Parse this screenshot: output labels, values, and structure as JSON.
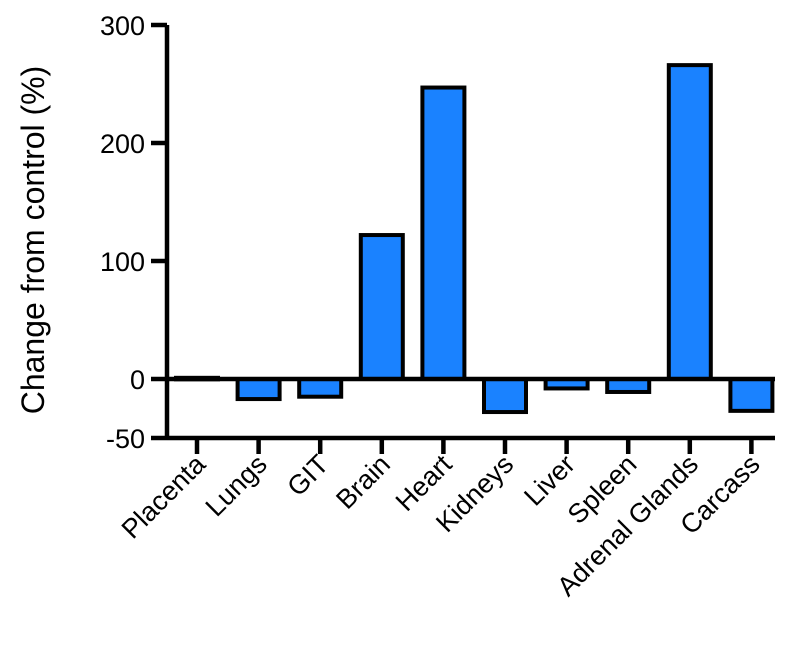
{
  "chart_data": {
    "type": "bar",
    "title": "",
    "xlabel": "",
    "ylabel": "Change from control (%)",
    "ylim": [
      -50,
      300
    ],
    "yticks": [
      -50,
      0,
      100,
      200,
      300
    ],
    "grid": false,
    "legend": "none",
    "categories": [
      "Placenta",
      "Lungs",
      "GIT",
      "Brain",
      "Heart",
      "Kidneys",
      "Liver",
      "Spleen",
      "Adrenal Glands",
      "Carcass"
    ],
    "values": [
      1,
      -17,
      -15,
      122,
      247,
      -28,
      -8,
      -11,
      266,
      -27
    ],
    "colors": {
      "bar_fill": "#1a82ff",
      "bar_stroke": "#000000",
      "axis": "#000000"
    }
  }
}
